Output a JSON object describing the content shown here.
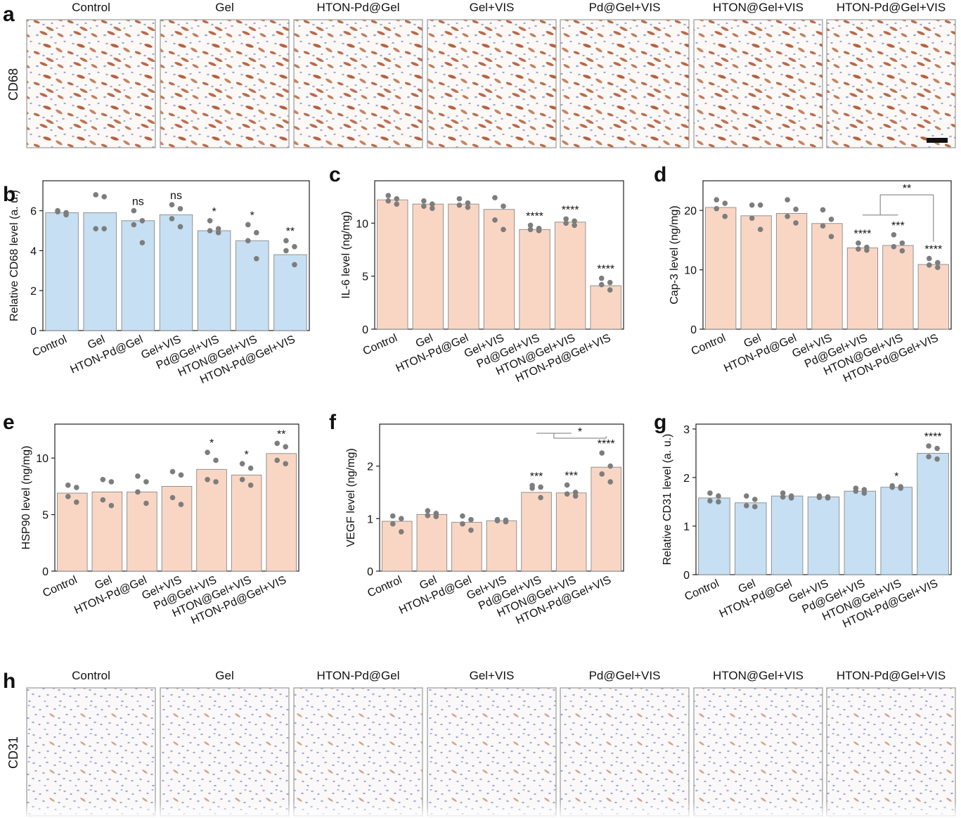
{
  "groups": [
    "Control",
    "Gel",
    "HTON-Pd@Gel",
    "Gel+VIS",
    "Pd@Gel+VIS",
    "HTON@Gel+VIS",
    "HTON-Pd@Gel+VIS"
  ],
  "micrographs": [
    {
      "letter": "a",
      "stain": "CD68",
      "headers": [
        "Control",
        "Gel",
        "HTON-Pd@Gel",
        "Gel+VIS",
        "Pd@Gel+VIS",
        "HTON@Gel+VIS",
        "HTON-Pd@Gel+VIS"
      ]
    },
    {
      "letter": "h",
      "stain": "CD31",
      "headers": [
        "Control",
        "Gel",
        "HTON-Pd@Gel",
        "Gel+VIS",
        "Pd@Gel+VIS",
        "HTON@Gel+VIS",
        "HTON-Pd@Gel+VIS"
      ]
    }
  ],
  "chart_data": [
    {
      "letter": "b",
      "type": "bar",
      "ylabel": "Relative CD68 level (a. u.)",
      "ylim": [
        0,
        7.5
      ],
      "yticks": [
        0,
        2,
        4,
        6
      ],
      "ytick_labels": [
        "0",
        "2",
        "4",
        "6"
      ],
      "color": "#c6dff3",
      "categories": [
        "Control",
        "Gel",
        "HTON-Pd@Gel",
        "Gel+VIS",
        "Pd@Gel+VIS",
        "HTON@Gel+VIS",
        "HTON-Pd@Gel+VIS"
      ],
      "values": [
        5.9,
        5.9,
        5.5,
        5.8,
        5.0,
        4.5,
        3.8
      ],
      "points": [
        [
          6.0,
          5.9,
          5.95,
          5.8
        ],
        [
          6.8,
          6.7,
          5.1,
          5.1
        ],
        [
          6.0,
          5.5,
          5.3,
          4.4
        ],
        [
          6.3,
          6.1,
          5.6,
          5.2
        ],
        [
          5.5,
          5.1,
          5.0,
          4.9
        ],
        [
          5.3,
          4.9,
          4.5,
          3.6
        ],
        [
          4.5,
          4.2,
          4.0,
          3.3
        ]
      ],
      "sig": [
        "",
        "",
        "ns",
        "ns",
        "*",
        "*",
        "**"
      ],
      "brackets": []
    },
    {
      "letter": "c",
      "type": "bar",
      "ylabel": "IL-6 level (ng/mg)",
      "ylim": [
        0,
        14
      ],
      "yticks": [
        0,
        5,
        10
      ],
      "ytick_labels": [
        "0",
        "5",
        "10"
      ],
      "color": "#f9d6c4",
      "categories": [
        "Control",
        "Gel",
        "HTON-Pd@Gel",
        "Gel+VIS",
        "Pd@Gel+VIS",
        "HTON@Gel+VIS",
        "HTON-Pd@Gel+VIS"
      ],
      "values": [
        12.2,
        11.8,
        11.8,
        11.3,
        9.4,
        10.1,
        4.1
      ],
      "points": [
        [
          12.6,
          12.3,
          12.1,
          11.8
        ],
        [
          12.1,
          11.8,
          11.6,
          11.4
        ],
        [
          12.3,
          11.9,
          11.7,
          11.5
        ],
        [
          12.4,
          11.6,
          10.3,
          9.4
        ],
        [
          9.8,
          9.5,
          9.4,
          9.3
        ],
        [
          10.4,
          10.2,
          10.0,
          9.8
        ],
        [
          4.8,
          4.4,
          4.2,
          3.7
        ]
      ],
      "sig": [
        "",
        "",
        "",
        "",
        "****",
        "****",
        "****"
      ],
      "brackets": []
    },
    {
      "letter": "d",
      "type": "bar",
      "ylabel": "Cap-3 level (ng/mg)",
      "ylim": [
        0,
        25
      ],
      "yticks": [
        0,
        10,
        20
      ],
      "ytick_labels": [
        "0",
        "10",
        "20"
      ],
      "color": "#f9d6c4",
      "categories": [
        "Control",
        "Gel",
        "HTON-Pd@Gel",
        "Gel+VIS",
        "Pd@Gel+VIS",
        "HTON@Gel+VIS",
        "HTON-Pd@Gel+VIS"
      ],
      "values": [
        20.5,
        19.1,
        19.5,
        17.8,
        13.7,
        14.1,
        10.9
      ],
      "points": [
        [
          21.8,
          21.2,
          20.3,
          19.0
        ],
        [
          20.9,
          20.9,
          18.7,
          16.8
        ],
        [
          21.8,
          20.2,
          19.0,
          17.9
        ],
        [
          20.1,
          18.5,
          17.4,
          15.6
        ],
        [
          14.5,
          13.8,
          13.5,
          13.3
        ],
        [
          15.9,
          14.5,
          13.9,
          13.2
        ],
        [
          11.9,
          11.2,
          10.8,
          10.4
        ]
      ],
      "sig": [
        "",
        "",
        "",
        "",
        "****",
        "***",
        "****"
      ],
      "brackets": [
        {
          "from": 4,
          "to": 5,
          "target": 6,
          "label": "**"
        }
      ]
    },
    {
      "letter": "e",
      "type": "bar",
      "ylabel": "HSP90 level (ng/mg)",
      "ylim": [
        0,
        13
      ],
      "yticks": [
        0,
        5,
        10
      ],
      "ytick_labels": [
        "0",
        "5",
        "10"
      ],
      "color": "#f9d6c4",
      "categories": [
        "Control",
        "Gel",
        "HTON-Pd@Gel",
        "Gel+VIS",
        "Pd@Gel+VIS",
        "HTON@Gel+VIS",
        "HTON-Pd@Gel+VIS"
      ],
      "values": [
        6.9,
        7.0,
        7.0,
        7.5,
        9.0,
        8.5,
        10.4
      ],
      "points": [
        [
          7.6,
          7.4,
          6.6,
          6.1
        ],
        [
          8.1,
          7.9,
          6.3,
          5.8
        ],
        [
          8.4,
          7.9,
          7.0,
          6.0
        ],
        [
          8.8,
          8.5,
          6.5,
          5.9
        ],
        [
          10.5,
          9.8,
          8.1,
          7.9
        ],
        [
          9.5,
          9.1,
          8.1,
          7.6
        ],
        [
          11.3,
          11.0,
          9.8,
          9.5
        ]
      ],
      "sig": [
        "",
        "",
        "",
        "",
        "*",
        "*",
        "**"
      ],
      "brackets": []
    },
    {
      "letter": "f",
      "type": "bar",
      "ylabel": "VEGF level (ng/mg)",
      "ylim": [
        0,
        2.8
      ],
      "yticks": [
        0,
        1,
        2
      ],
      "ytick_labels": [
        "0",
        "1",
        "2"
      ],
      "color": "#f9d6c4",
      "categories": [
        "Control",
        "Gel",
        "HTON-Pd@Gel",
        "Gel+VIS",
        "Pd@Gel+VIS",
        "HTON@Gel+VIS",
        "HTON-Pd@Gel+VIS"
      ],
      "values": [
        0.95,
        1.08,
        0.93,
        0.96,
        1.5,
        1.49,
        1.98
      ],
      "points": [
        [
          1.05,
          1.0,
          0.9,
          0.75
        ],
        [
          1.15,
          1.1,
          1.06,
          1.04
        ],
        [
          1.05,
          0.98,
          0.9,
          0.78
        ],
        [
          0.98,
          0.97,
          0.96,
          0.94
        ],
        [
          1.63,
          1.6,
          1.58,
          1.4
        ],
        [
          1.64,
          1.5,
          1.47,
          1.43
        ],
        [
          2.25,
          2.0,
          1.85,
          1.7
        ]
      ],
      "sig": [
        "",
        "",
        "",
        "",
        "***",
        "***",
        "****"
      ],
      "brackets": [
        {
          "from": 4,
          "to": 5,
          "target": 6,
          "label": "*"
        }
      ]
    },
    {
      "letter": "g",
      "type": "bar",
      "ylabel": "Relative CD31 level (a. u.)",
      "ylim": [
        0,
        3.1
      ],
      "yticks": [
        0,
        1,
        2,
        3
      ],
      "ytick_labels": [
        "0",
        "1",
        "2",
        "3"
      ],
      "color": "#c6dff3",
      "categories": [
        "Control",
        "Gel",
        "HTON-Pd@Gel",
        "Gel+VIS",
        "Pd@Gel+VIS",
        "HTON@Gel+VIS",
        "HTON-Pd@Gel+VIS"
      ],
      "values": [
        1.58,
        1.48,
        1.62,
        1.6,
        1.72,
        1.8,
        2.5
      ],
      "points": [
        [
          1.68,
          1.62,
          1.52,
          1.5
        ],
        [
          1.62,
          1.55,
          1.42,
          1.4
        ],
        [
          1.68,
          1.62,
          1.6,
          1.58
        ],
        [
          1.62,
          1.6,
          1.59,
          1.58
        ],
        [
          1.78,
          1.75,
          1.72,
          1.68
        ],
        [
          1.83,
          1.81,
          1.8,
          1.78
        ],
        [
          2.65,
          2.6,
          2.43,
          2.38
        ]
      ],
      "sig": [
        "",
        "",
        "",
        "",
        "",
        "*",
        "****"
      ],
      "brackets": []
    }
  ]
}
